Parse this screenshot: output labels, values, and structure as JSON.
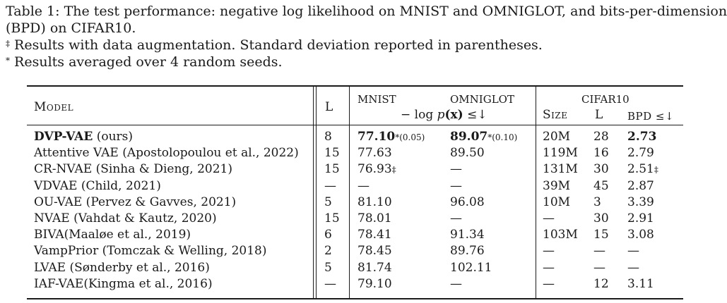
{
  "caption": {
    "line1": "Table 1: The test performance: negative log likelihood on MNIST and OMNIGLOT, and bits-per-dimension",
    "line2": "(BPD) on CIFAR10.",
    "note1_mark": "‡",
    "note1_text": "Results with data augmentation. Standard deviation reported in parentheses.",
    "note2_mark": "*",
    "note2_text": "Results averaged over 4 random seeds."
  },
  "headers": {
    "model": "Model",
    "l": "L",
    "mnist": "MNIST",
    "omniglot": "OMNIGLOT",
    "nll_pre": "− log ",
    "nll_p": "p",
    "nll_x": "(x)",
    "nll_post": " ≤↓",
    "cifar": "CIFAR10",
    "size": "Size",
    "cifar_l": "L",
    "bpd": "BPD ≤↓"
  },
  "rows": [
    {
      "model": "DVP-VAE",
      "model_extra": " (ours)",
      "l": "8",
      "mnist": "77.10",
      "mnist_sup": "*",
      "mnist_sd": "(0.05)",
      "omniglot": "89.07",
      "omniglot_sup": "*",
      "omniglot_sd": "(0.10)",
      "size": "20M",
      "cl": "28",
      "bpd": "2.73",
      "bpd_sup": ""
    },
    {
      "model": "Attentive VAE (Apostolopoulou et al., 2022)",
      "l": "15",
      "mnist": "77.63",
      "omniglot": "89.50",
      "size": "119M",
      "cl": "16",
      "bpd": "2.79"
    },
    {
      "model": "CR-NVAE (Sinha & Dieng, 2021)",
      "l": "15",
      "mnist": "76.93",
      "mnist_sup": "‡",
      "omniglot": "—",
      "size": "131M",
      "cl": "30",
      "bpd": "2.51",
      "bpd_sup": "‡"
    },
    {
      "model": "VDVAE (Child, 2021)",
      "l": "—",
      "mnist": "—",
      "omniglot": "—",
      "size": "39M",
      "cl": "45",
      "bpd": "2.87"
    },
    {
      "model": "OU-VAE (Pervez & Gavves, 2021)",
      "l": "5",
      "mnist": "81.10",
      "omniglot": "96.08",
      "size": "10M",
      "cl": "3",
      "bpd": "3.39"
    },
    {
      "model": "NVAE (Vahdat & Kautz, 2020)",
      "l": "15",
      "mnist": "78.01",
      "omniglot": "—",
      "size": "—",
      "cl": "30",
      "bpd": "2.91"
    },
    {
      "model": "BIVA(Maaløe et al., 2019)",
      "l": "6",
      "mnist": "78.41",
      "omniglot": "91.34",
      "size": "103M",
      "cl": "15",
      "bpd": "3.08"
    },
    {
      "model": "VampPrior (Tomczak & Welling, 2018)",
      "l": "2",
      "mnist": "78.45",
      "omniglot": "89.76",
      "size": "—",
      "cl": "—",
      "bpd": "—"
    },
    {
      "model": "LVAE (Sønderby et al., 2016)",
      "l": "5",
      "mnist": "81.74",
      "omniglot": "102.11",
      "size": "—",
      "cl": "—",
      "bpd": "—"
    },
    {
      "model": "IAF-VAE(Kingma et al., 2016)",
      "l": "—",
      "mnist": "79.10",
      "omniglot": "—",
      "size": "—",
      "cl": "12",
      "bpd": "3.11"
    }
  ]
}
